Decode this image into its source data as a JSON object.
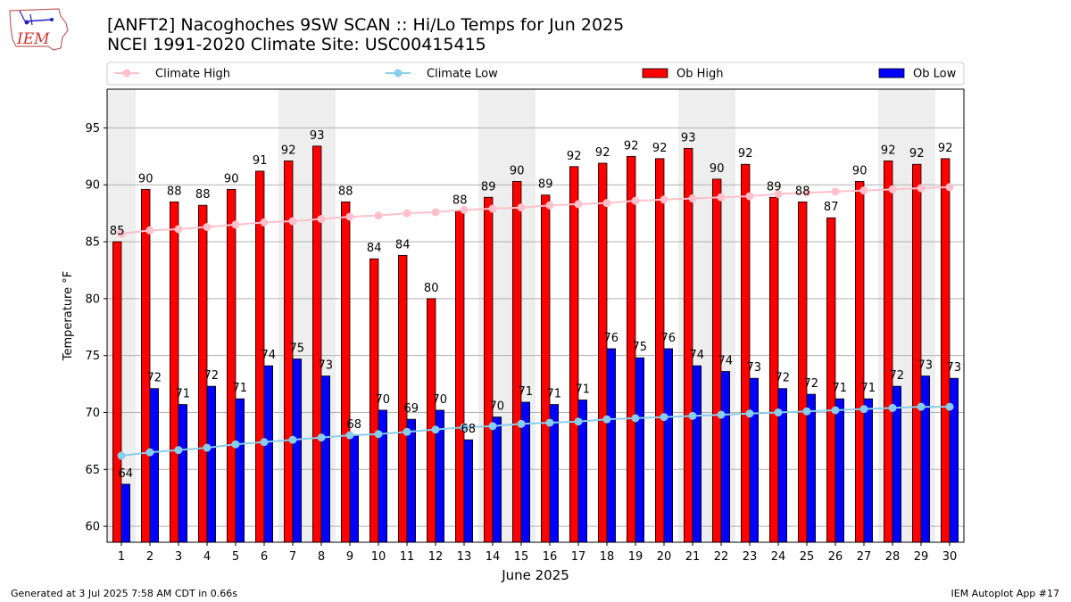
{
  "header": {
    "logo_text": "IEM",
    "title_line1": "[ANFT2] Nacoghoches 9SW SCAN :: Hi/Lo Temps for Jun 2025",
    "title_line2": "NCEI 1991-2020 Climate Site: USC00415415"
  },
  "footer": {
    "left": "Generated at 3 Jul 2025 7:58 AM CDT in 0.66s",
    "right": "IEM Autoplot App #17"
  },
  "chart_data": {
    "type": "bar",
    "xlabel": "June 2025",
    "ylabel": "Temperature °F",
    "ylim": [
      58.6,
      98.4
    ],
    "yticks": [
      60,
      65,
      70,
      75,
      80,
      85,
      90,
      95
    ],
    "categories": [
      "1",
      "2",
      "3",
      "4",
      "5",
      "6",
      "7",
      "8",
      "9",
      "10",
      "11",
      "12",
      "13",
      "14",
      "15",
      "16",
      "17",
      "18",
      "19",
      "20",
      "21",
      "22",
      "23",
      "24",
      "25",
      "26",
      "27",
      "28",
      "29",
      "30"
    ],
    "weekend_shaded_days": [
      1,
      7,
      8,
      14,
      15,
      21,
      22,
      28,
      29
    ],
    "grid": "horizontal",
    "legend_placement": "top",
    "series": [
      {
        "name": "Ob High",
        "kind": "bar",
        "color": "#ff0000",
        "values": [
          85.0,
          89.6,
          88.5,
          88.2,
          89.6,
          91.2,
          92.1,
          93.4,
          88.5,
          83.5,
          83.8,
          80.0,
          87.7,
          88.9,
          90.3,
          89.1,
          91.6,
          91.9,
          92.5,
          92.3,
          93.2,
          90.5,
          91.8,
          88.9,
          88.5,
          87.1,
          90.3,
          92.1,
          91.8,
          92.3
        ],
        "labels": [
          "85",
          "90",
          "88",
          "88",
          "90",
          "91",
          "92",
          "93",
          "88",
          "84",
          "84",
          "80",
          "88",
          "89",
          "90",
          "89",
          "92",
          "92",
          "92",
          "92",
          "93",
          "90",
          "92",
          "89",
          "88",
          "87",
          "90",
          "92",
          "92",
          "92"
        ]
      },
      {
        "name": "Ob Low",
        "kind": "bar",
        "color": "#0000ff",
        "values": [
          63.7,
          72.1,
          70.7,
          72.3,
          71.2,
          74.1,
          74.7,
          73.2,
          68.0,
          70.2,
          69.4,
          70.2,
          67.6,
          69.6,
          70.9,
          70.7,
          71.1,
          75.6,
          74.8,
          75.6,
          74.1,
          73.6,
          73.0,
          72.1,
          71.6,
          71.2,
          71.2,
          72.3,
          73.2,
          73.0
        ],
        "labels": [
          "64",
          "72",
          "71",
          "72",
          "71",
          "74",
          "75",
          "73",
          "68",
          "70",
          "69",
          "70",
          "68",
          "70",
          "71",
          "71",
          "71",
          "76",
          "75",
          "76",
          "74",
          "74",
          "73",
          "72",
          "72",
          "71",
          "71",
          "72",
          "73",
          "73"
        ]
      },
      {
        "name": "Climate High",
        "kind": "line",
        "color": "#ffc0cb",
        "values": [
          85.7,
          86.0,
          86.1,
          86.3,
          86.5,
          86.7,
          86.8,
          87.0,
          87.2,
          87.3,
          87.5,
          87.6,
          87.8,
          87.9,
          88.0,
          88.2,
          88.3,
          88.4,
          88.6,
          88.7,
          88.8,
          88.9,
          89.0,
          89.2,
          89.3,
          89.4,
          89.5,
          89.6,
          89.7,
          89.8
        ]
      },
      {
        "name": "Climate Low",
        "kind": "line",
        "color": "#87ceeb",
        "values": [
          66.2,
          66.5,
          66.7,
          66.9,
          67.2,
          67.4,
          67.6,
          67.8,
          68.0,
          68.1,
          68.3,
          68.5,
          68.7,
          68.8,
          69.0,
          69.1,
          69.2,
          69.4,
          69.5,
          69.6,
          69.7,
          69.8,
          69.9,
          70.0,
          70.1,
          70.2,
          70.3,
          70.4,
          70.5,
          70.5
        ]
      }
    ],
    "legend": [
      "Climate High",
      "Climate Low",
      "Ob High",
      "Ob Low"
    ]
  }
}
